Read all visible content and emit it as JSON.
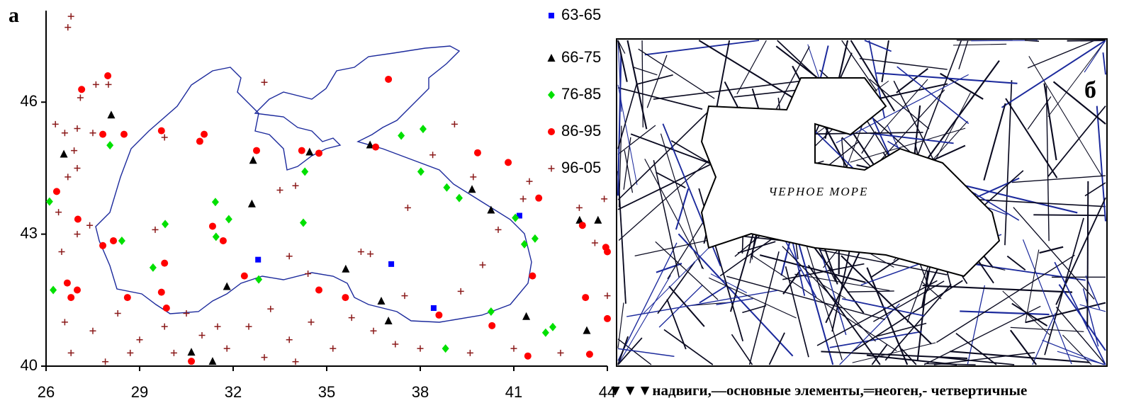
{
  "chart_data": {
    "type": "scatter",
    "panel_label": "а",
    "xlim": [
      26,
      44
    ],
    "xticks": [
      26,
      29,
      32,
      35,
      38,
      41,
      44
    ],
    "ylim": [
      40,
      48
    ],
    "yticks": [
      40,
      43,
      46
    ],
    "series": [
      {
        "name": "63-65",
        "color": "#0000ff",
        "marker": "square",
        "x": [
          32.8,
          37.07,
          38.43,
          41.18
        ],
        "values": [
          42.42,
          42.32,
          41.32,
          43.42
        ]
      },
      {
        "name": "66-75",
        "color": "#000000",
        "marker": "triangle",
        "x": [
          28.09,
          32.64,
          32.6,
          34.45,
          36.39,
          35.61,
          31.8,
          36.75,
          36.98,
          39.66,
          40.27,
          41.4,
          43.11,
          43.7,
          30.66,
          31.34,
          43.34,
          26.57
        ],
        "values": [
          45.71,
          44.68,
          43.69,
          44.87,
          45.03,
          42.21,
          41.81,
          41.48,
          41.03,
          44.02,
          43.55,
          41.13,
          43.32,
          43.32,
          40.32,
          40.11,
          40.81,
          44.82
        ]
      },
      {
        "name": "76-85",
        "color": "#00e000",
        "marker": "diamond",
        "x": [
          28.05,
          31.43,
          31.86,
          31.45,
          29.82,
          29.43,
          28.43,
          32.82,
          34.3,
          34.25,
          37.39,
          38.09,
          38.02,
          38.85,
          39.25,
          41.05,
          41.34,
          41.68,
          40.27,
          38.81,
          42.02,
          42.25,
          26.11,
          26.23
        ],
        "values": [
          45.02,
          43.73,
          43.34,
          42.94,
          43.23,
          42.24,
          42.85,
          41.97,
          44.42,
          43.26,
          45.24,
          45.39,
          44.42,
          44.06,
          43.82,
          43.37,
          42.77,
          42.9,
          41.24,
          40.4,
          40.76,
          40.89,
          43.74,
          41.73
        ]
      },
      {
        "name": "86-95",
        "color": "#ff0000",
        "marker": "circle",
        "x": [
          27.98,
          27.14,
          29.7,
          31.07,
          30.93,
          27.82,
          28.5,
          26.34,
          27.02,
          27.82,
          28.16,
          26.68,
          27.0,
          26.8,
          28.61,
          29.8,
          29.7,
          29.86,
          31.34,
          31.68,
          32.36,
          32.75,
          34.2,
          34.75,
          36.98,
          36.57,
          39.84,
          40.82,
          41.8,
          41.6,
          43.2,
          43.95,
          44.0,
          43.3,
          44.0,
          38.6,
          40.3,
          34.75,
          35.6,
          30.66,
          43.43,
          41.45
        ],
        "values": [
          46.6,
          46.29,
          45.35,
          45.27,
          45.11,
          45.27,
          45.27,
          43.97,
          43.34,
          42.74,
          42.85,
          41.89,
          41.73,
          41.56,
          41.56,
          42.34,
          41.68,
          41.32,
          43.18,
          42.85,
          42.05,
          44.9,
          44.9,
          44.84,
          46.52,
          44.98,
          44.85,
          44.63,
          43.82,
          42.05,
          43.2,
          42.7,
          42.6,
          41.56,
          41.08,
          41.16,
          40.92,
          41.73,
          41.56,
          40.11,
          40.27,
          40.23
        ]
      },
      {
        "name": "96-05",
        "color": "#8b1a1a",
        "marker": "plus",
        "x": [
          26.8,
          26.7,
          27.6,
          28.0,
          33.0,
          27.1,
          26.3,
          26.6,
          27.0,
          27.5,
          26.9,
          26.7,
          27.0,
          26.4,
          27.0,
          26.5,
          27.4,
          29.8,
          29.5,
          33.5,
          34.0,
          33.8,
          34.4,
          36.1,
          36.4,
          37.5,
          39.1,
          38.4,
          39.7,
          41.5,
          41.3,
          43.1,
          43.9,
          40.0,
          39.3,
          37.6,
          26.6,
          27.5,
          28.3,
          29.0,
          29.8,
          30.5,
          31.0,
          31.8,
          32.5,
          33.2,
          33.8,
          34.5,
          35.2,
          35.8,
          36.5,
          37.2,
          38.0,
          26.8,
          27.9,
          28.7,
          30.1,
          31.5,
          33.0,
          34.0,
          39.6,
          41.0,
          42.5,
          40.5,
          44.0,
          43.6
        ],
        "values": [
          47.95,
          47.7,
          46.4,
          46.4,
          46.45,
          46.1,
          45.5,
          45.3,
          45.4,
          45.3,
          44.9,
          44.3,
          44.5,
          43.5,
          43.0,
          42.6,
          43.2,
          45.2,
          43.1,
          44.0,
          44.1,
          42.5,
          42.1,
          42.6,
          42.55,
          41.6,
          45.5,
          44.8,
          44.3,
          44.2,
          43.8,
          43.6,
          43.8,
          42.3,
          41.7,
          43.6,
          41.0,
          40.8,
          41.2,
          40.6,
          40.9,
          41.2,
          40.7,
          40.4,
          40.9,
          41.3,
          40.6,
          41.0,
          40.4,
          41.1,
          40.8,
          40.5,
          40.4,
          40.3,
          40.1,
          40.3,
          40.3,
          40.9,
          40.2,
          40.1,
          40.3,
          40.4,
          40.3,
          43.1,
          41.6,
          42.8
        ]
      }
    ]
  },
  "panel_b": {
    "label": "б",
    "sea_label": "ЧЕРНОЕ МОРЕ",
    "caption": "▼▼▼надвиги,—основные элементы,═неоген,- четвертичные"
  }
}
